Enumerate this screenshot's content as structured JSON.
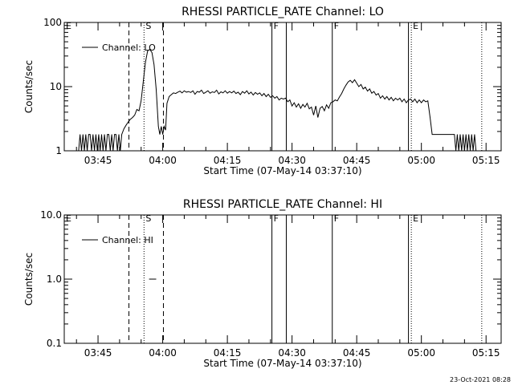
{
  "stamp": "23-Oct-2021 08:28",
  "chart_data": [
    {
      "type": "line",
      "title": "RHESSI PARTICLE_RATE Channel: LO",
      "xlabel": "Start Time (07-May-14 03:37:10)",
      "ylabel": "Counts/sec",
      "yscale": "log",
      "ylim": [
        1,
        100
      ],
      "yticks": [
        {
          "v": 1,
          "label": "1"
        },
        {
          "v": 10,
          "label": "10"
        },
        {
          "v": 100,
          "label": "100"
        }
      ],
      "xlim": [
        "03:37:10",
        "05:18:30"
      ],
      "xticks": [
        "03:45",
        "04:00",
        "04:15",
        "04:30",
        "04:45",
        "05:00",
        "05:15"
      ],
      "legend_position": "top-left",
      "series": [
        {
          "name": "Channel: LO",
          "points": [
            [
              "03:40:30",
              1
            ],
            [
              "03:40:50",
              1.8
            ],
            [
              "03:41:10",
              1
            ],
            [
              "03:41:30",
              1.8
            ],
            [
              "03:41:50",
              1
            ],
            [
              "03:42:10",
              1.8
            ],
            [
              "03:42:30",
              1
            ],
            [
              "03:42:50",
              1.8
            ],
            [
              "03:43:10",
              1.8
            ],
            [
              "03:43:30",
              1
            ],
            [
              "03:43:50",
              1.8
            ],
            [
              "03:44:10",
              1
            ],
            [
              "03:44:30",
              1.8
            ],
            [
              "03:44:50",
              1
            ],
            [
              "03:45:10",
              1.8
            ],
            [
              "03:45:30",
              1
            ],
            [
              "03:45:50",
              1.8
            ],
            [
              "03:46:10",
              1
            ],
            [
              "03:46:30",
              1.8
            ],
            [
              "03:46:50",
              1
            ],
            [
              "03:47:10",
              1.8
            ],
            [
              "03:47:30",
              1.8
            ],
            [
              "03:47:50",
              1
            ],
            [
              "03:48:10",
              1.8
            ],
            [
              "03:48:30",
              1
            ],
            [
              "03:48:50",
              1.8
            ],
            [
              "03:49:10",
              1.8
            ],
            [
              "03:49:30",
              1
            ],
            [
              "03:49:50",
              1.8
            ],
            [
              "03:50:10",
              1
            ],
            [
              "03:50:30",
              1.8
            ],
            [
              "03:51:00",
              2.2
            ],
            [
              "03:51:30",
              2.5
            ],
            [
              "03:52:00",
              2.8
            ],
            [
              "03:52:30",
              3.1
            ],
            [
              "03:53:00",
              3.3
            ],
            [
              "03:53:30",
              3.6
            ],
            [
              "03:54:00",
              4.4
            ],
            [
              "03:54:30",
              4.2
            ],
            [
              "03:55:00",
              6
            ],
            [
              "03:55:30",
              12
            ],
            [
              "03:56:00",
              24
            ],
            [
              "03:56:30",
              36
            ],
            [
              "03:57:00",
              38
            ],
            [
              "03:57:30",
              34
            ],
            [
              "03:58:00",
              22
            ],
            [
              "03:58:30",
              9
            ],
            [
              "03:59:00",
              2.4
            ],
            [
              "03:59:20",
              1.8
            ],
            [
              "03:59:40",
              2.4
            ],
            [
              "04:00:00",
              1.8
            ],
            [
              "04:00:20",
              2.4
            ],
            [
              "04:00:40",
              2.1
            ],
            [
              "04:01:00",
              5.5
            ],
            [
              "04:01:30",
              7
            ],
            [
              "04:02:00",
              7.5
            ],
            [
              "04:02:30",
              8
            ],
            [
              "04:03:00",
              7.8
            ],
            [
              "04:03:30",
              8.2
            ],
            [
              "04:04:00",
              8.5
            ],
            [
              "04:04:30",
              8
            ],
            [
              "04:05:00",
              8.6
            ],
            [
              "04:05:30",
              8.2
            ],
            [
              "04:06:00",
              8.4
            ],
            [
              "04:06:30",
              8.1
            ],
            [
              "04:07:00",
              8.6
            ],
            [
              "04:07:30",
              7.6
            ],
            [
              "04:08:00",
              8.4
            ],
            [
              "04:08:30",
              8.2
            ],
            [
              "04:09:00",
              8.8
            ],
            [
              "04:09:30",
              7.8
            ],
            [
              "04:10:00",
              8.2
            ],
            [
              "04:10:30",
              8.6
            ],
            [
              "04:11:00",
              7.9
            ],
            [
              "04:11:30",
              8.3
            ],
            [
              "04:12:00",
              8.1
            ],
            [
              "04:12:30",
              8.8
            ],
            [
              "04:13:00",
              7.7
            ],
            [
              "04:13:30",
              8.3
            ],
            [
              "04:14:00",
              8
            ],
            [
              "04:14:30",
              8.6
            ],
            [
              "04:15:00",
              7.9
            ],
            [
              "04:15:30",
              8.4
            ],
            [
              "04:16:00",
              8
            ],
            [
              "04:16:30",
              8.5
            ],
            [
              "04:17:00",
              7.8
            ],
            [
              "04:17:30",
              8.2
            ],
            [
              "04:18:00",
              7.5
            ],
            [
              "04:18:30",
              8.4
            ],
            [
              "04:19:00",
              7.9
            ],
            [
              "04:19:30",
              8.6
            ],
            [
              "04:20:00",
              7.7
            ],
            [
              "04:20:30",
              8.2
            ],
            [
              "04:21:00",
              7.4
            ],
            [
              "04:21:30",
              8.1
            ],
            [
              "04:22:00",
              7.6
            ],
            [
              "04:22:30",
              8
            ],
            [
              "04:23:00",
              7.2
            ],
            [
              "04:23:30",
              7.8
            ],
            [
              "04:24:00",
              7
            ],
            [
              "04:24:30",
              7.6
            ],
            [
              "04:25:00",
              6.8
            ],
            [
              "04:25:30",
              7.2
            ],
            [
              "04:26:00",
              6.6
            ],
            [
              "04:26:30",
              7
            ],
            [
              "04:27:00",
              6.2
            ],
            [
              "04:27:30",
              6.6
            ],
            [
              "04:28:00",
              6.4
            ],
            [
              "04:28:30",
              6.6
            ],
            [
              "04:29:00",
              5.8
            ],
            [
              "04:29:30",
              6.2
            ],
            [
              "04:30:00",
              5
            ],
            [
              "04:30:30",
              5.6
            ],
            [
              "04:31:00",
              4.8
            ],
            [
              "04:31:30",
              5.4
            ],
            [
              "04:32:00",
              4.6
            ],
            [
              "04:32:30",
              5.3
            ],
            [
              "04:33:00",
              4.8
            ],
            [
              "04:33:30",
              5.5
            ],
            [
              "04:34:00",
              4.5
            ],
            [
              "04:34:30",
              4.8
            ],
            [
              "04:35:00",
              3.6
            ],
            [
              "04:35:30",
              5
            ],
            [
              "04:36:00",
              3.3
            ],
            [
              "04:36:30",
              4.6
            ],
            [
              "04:37:00",
              4.9
            ],
            [
              "04:37:30",
              4.2
            ],
            [
              "04:38:00",
              5.2
            ],
            [
              "04:38:30",
              4.6
            ],
            [
              "04:39:00",
              5.6
            ],
            [
              "04:39:30",
              5.8
            ],
            [
              "04:40:00",
              6.2
            ],
            [
              "04:40:30",
              6
            ],
            [
              "04:41:00",
              6.9
            ],
            [
              "04:41:30",
              7.8
            ],
            [
              "04:42:00",
              9.2
            ],
            [
              "04:42:30",
              10.5
            ],
            [
              "04:43:00",
              11.8
            ],
            [
              "04:43:30",
              12.5
            ],
            [
              "04:44:00",
              11.5
            ],
            [
              "04:44:30",
              12.8
            ],
            [
              "04:45:00",
              11.3
            ],
            [
              "04:45:30",
              10
            ],
            [
              "04:46:00",
              10.8
            ],
            [
              "04:46:30",
              9.2
            ],
            [
              "04:47:00",
              9.8
            ],
            [
              "04:47:30",
              8.5
            ],
            [
              "04:48:00",
              9.2
            ],
            [
              "04:48:30",
              7.9
            ],
            [
              "04:49:00",
              8.4
            ],
            [
              "04:49:30",
              7.4
            ],
            [
              "04:50:00",
              7.8
            ],
            [
              "04:50:30",
              6.6
            ],
            [
              "04:51:00",
              7.2
            ],
            [
              "04:51:30",
              6.4
            ],
            [
              "04:52:00",
              7
            ],
            [
              "04:52:30",
              6.2
            ],
            [
              "04:53:00",
              6.8
            ],
            [
              "04:53:30",
              6
            ],
            [
              "04:54:00",
              6.6
            ],
            [
              "04:54:30",
              6.2
            ],
            [
              "04:55:00",
              6.6
            ],
            [
              "04:55:30",
              5.8
            ],
            [
              "04:56:00",
              6.4
            ],
            [
              "04:56:30",
              5.6
            ],
            [
              "04:57:00",
              6.2
            ],
            [
              "04:57:30",
              6.4
            ],
            [
              "04:58:00",
              5.8
            ],
            [
              "04:58:30",
              6.4
            ],
            [
              "04:59:00",
              5.6
            ],
            [
              "04:59:30",
              6.2
            ],
            [
              "05:00:00",
              5.6
            ],
            [
              "05:00:30",
              6.2
            ],
            [
              "05:01:00",
              5.8
            ],
            [
              "05:01:30",
              6
            ],
            [
              "05:02:00",
              3.4
            ],
            [
              "05:02:30",
              1.8
            ],
            [
              "05:04:00",
              1.8
            ],
            [
              "05:05:30",
              1.8
            ],
            [
              "05:07:00",
              1.8
            ],
            [
              "05:07:40",
              1.8
            ],
            [
              "05:08:00",
              1
            ],
            [
              "05:08:20",
              1.8
            ],
            [
              "05:08:40",
              1
            ],
            [
              "05:09:00",
              1.8
            ],
            [
              "05:09:20",
              1
            ],
            [
              "05:09:40",
              1.8
            ],
            [
              "05:10:00",
              1
            ],
            [
              "05:10:20",
              1.8
            ],
            [
              "05:10:40",
              1
            ],
            [
              "05:11:00",
              1.8
            ],
            [
              "05:11:20",
              1
            ],
            [
              "05:11:40",
              1.8
            ],
            [
              "05:12:00",
              1
            ],
            [
              "05:12:20",
              1.8
            ],
            [
              "05:12:40",
              1
            ]
          ]
        }
      ],
      "markers": [
        {
          "time": "03:52:10",
          "style": "dashed",
          "label": ""
        },
        {
          "time": "03:55:40",
          "style": "dotted",
          "label": "S"
        },
        {
          "time": "04:00:10",
          "style": "dashed",
          "label": ""
        },
        {
          "time": "04:25:20",
          "style": "solid",
          "label": "F"
        },
        {
          "time": "04:28:40",
          "style": "solid",
          "label": ""
        },
        {
          "time": "04:39:20",
          "style": "solid",
          "label": "F"
        },
        {
          "time": "04:57:00",
          "style": "solid",
          "label": ""
        },
        {
          "time": "04:57:40",
          "style": "dotted",
          "label": "E"
        },
        {
          "time": "05:14:00",
          "style": "dotted",
          "label": ""
        }
      ],
      "edge_label_left": "E"
    },
    {
      "type": "line",
      "title": "RHESSI PARTICLE_RATE Channel: HI",
      "xlabel": "Start Time (07-May-14 03:37:10)",
      "ylabel": "Counts/sec",
      "yscale": "log",
      "ylim": [
        0.1,
        10
      ],
      "yticks": [
        {
          "v": 0.1,
          "label": "0.1"
        },
        {
          "v": 1,
          "label": "1.0"
        },
        {
          "v": 10,
          "label": "10.0"
        }
      ],
      "xlim": [
        "03:37:10",
        "05:18:30"
      ],
      "xticks": [
        "03:45",
        "04:00",
        "04:15",
        "04:30",
        "04:45",
        "05:00",
        "05:15"
      ],
      "legend_position": "top-left",
      "series": [
        {
          "name": "Channel: HI",
          "points": [
            [
              "03:56:50",
              1
            ],
            [
              "03:58:30",
              1
            ]
          ]
        }
      ],
      "markers": [
        {
          "time": "03:52:10",
          "style": "dashed",
          "label": ""
        },
        {
          "time": "03:55:40",
          "style": "dotted",
          "label": "S"
        },
        {
          "time": "04:00:10",
          "style": "dashed",
          "label": ""
        },
        {
          "time": "04:25:20",
          "style": "solid",
          "label": "F"
        },
        {
          "time": "04:28:40",
          "style": "solid",
          "label": ""
        },
        {
          "time": "04:39:20",
          "style": "solid",
          "label": "F"
        },
        {
          "time": "04:57:00",
          "style": "solid",
          "label": ""
        },
        {
          "time": "04:57:40",
          "style": "dotted",
          "label": "E"
        },
        {
          "time": "05:14:00",
          "style": "dotted",
          "label": ""
        }
      ],
      "edge_label_left": "E"
    }
  ]
}
